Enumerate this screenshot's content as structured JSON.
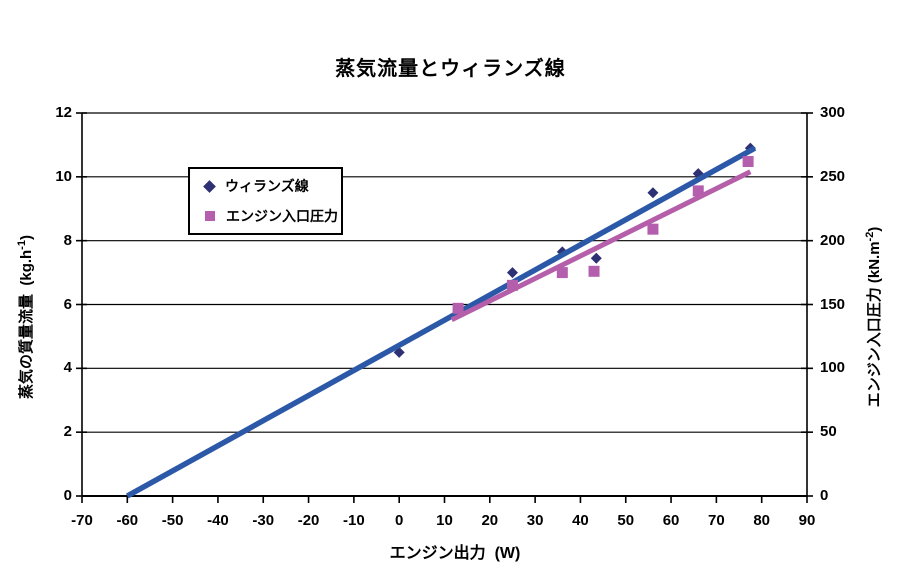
{
  "chart": {
    "title": "蒸気流量とウィランズ線",
    "x_axis_label": "エンジン出力  (W)",
    "y_left_label_main": "蒸気の質量流量  (kg.h",
    "y_left_label_sup": "-1",
    "y_left_label_close": ")",
    "y_right_label_main": "エンジン入口圧力 (kN.m",
    "y_right_label_sup": "-2",
    "y_right_label_close": ")",
    "legend": [
      {
        "label": "ウィランズ線"
      },
      {
        "label": "エンジン入口圧力"
      }
    ]
  },
  "chart_data": {
    "type": "scatter",
    "title": "蒸気流量とウィランズ線",
    "xlabel": "エンジン出力 (W)",
    "ylabel_left": "蒸気の質量流量 (kg.h-1)",
    "ylabel_right": "エンジン入口圧力 (kN.m-2)",
    "xlim": [
      -70,
      90
    ],
    "ylim_left": [
      0,
      12
    ],
    "ylim_right": [
      0,
      300
    ],
    "x_ticks": [
      -70,
      -60,
      -50,
      -40,
      -30,
      -20,
      -10,
      0,
      10,
      20,
      30,
      40,
      50,
      60,
      70,
      80,
      90
    ],
    "y_left_ticks": [
      0,
      2,
      4,
      6,
      8,
      10,
      12
    ],
    "y_right_ticks": [
      0,
      50,
      100,
      150,
      200,
      250,
      300
    ],
    "grid": "horizontal",
    "grid_color": "#000000",
    "legend_position": "upper-left-inside",
    "background": "#ffffff",
    "series": [
      {
        "name": "ウィランズ線",
        "axis": "left",
        "marker": "diamond",
        "marker_color": "#2E3173",
        "points": [
          [
            0,
            4.5
          ],
          [
            13,
            5.8
          ],
          [
            25,
            7.0
          ],
          [
            36,
            7.65
          ],
          [
            43.5,
            7.45
          ],
          [
            56,
            9.5
          ],
          [
            66,
            10.1
          ],
          [
            77.5,
            10.9
          ]
        ],
        "trendline": {
          "color": "#2C58A8",
          "width": 5.5,
          "from": [
            -60,
            0
          ],
          "to": [
            78.5,
            10.9
          ]
        }
      },
      {
        "name": "エンジン入口圧力",
        "axis": "right",
        "marker": "square",
        "marker_color": "#B45FAD",
        "points": [
          [
            13,
            147
          ],
          [
            25,
            165
          ],
          [
            36,
            175
          ],
          [
            43,
            176
          ],
          [
            56,
            209
          ],
          [
            66,
            239
          ],
          [
            77,
            262
          ]
        ],
        "trendline": {
          "color": "#B55EA9",
          "width": 5,
          "from": [
            11.6,
            138
          ],
          "to": [
            77.5,
            254
          ]
        }
      }
    ]
  }
}
